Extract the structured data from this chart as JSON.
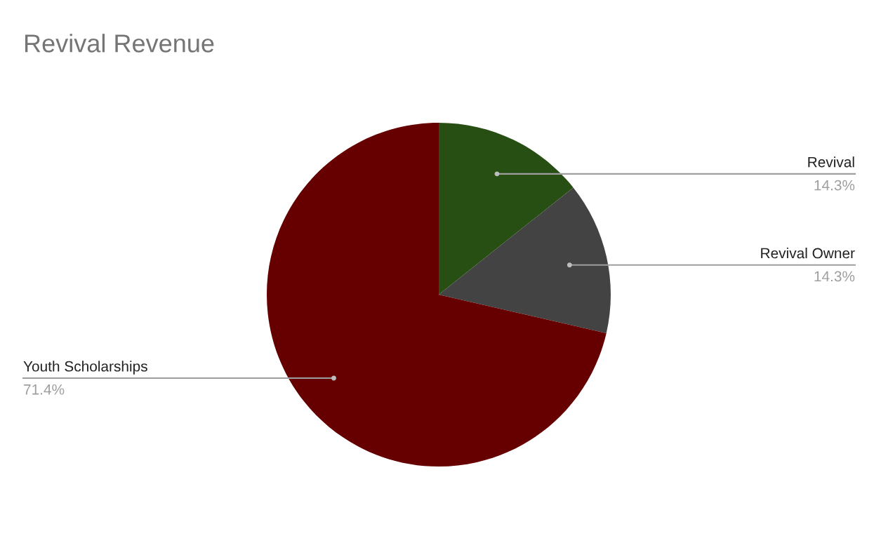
{
  "chart_data": {
    "type": "pie",
    "title": "Revival Revenue",
    "categories": [
      "Revival",
      "Revival Owner",
      "Youth Scholarships"
    ],
    "values": [
      14.3,
      14.3,
      71.4
    ],
    "value_labels": [
      "14.3%",
      "14.3%",
      "71.4%"
    ],
    "colors": [
      "#274e13",
      "#434343",
      "#660000"
    ],
    "legend": false
  }
}
